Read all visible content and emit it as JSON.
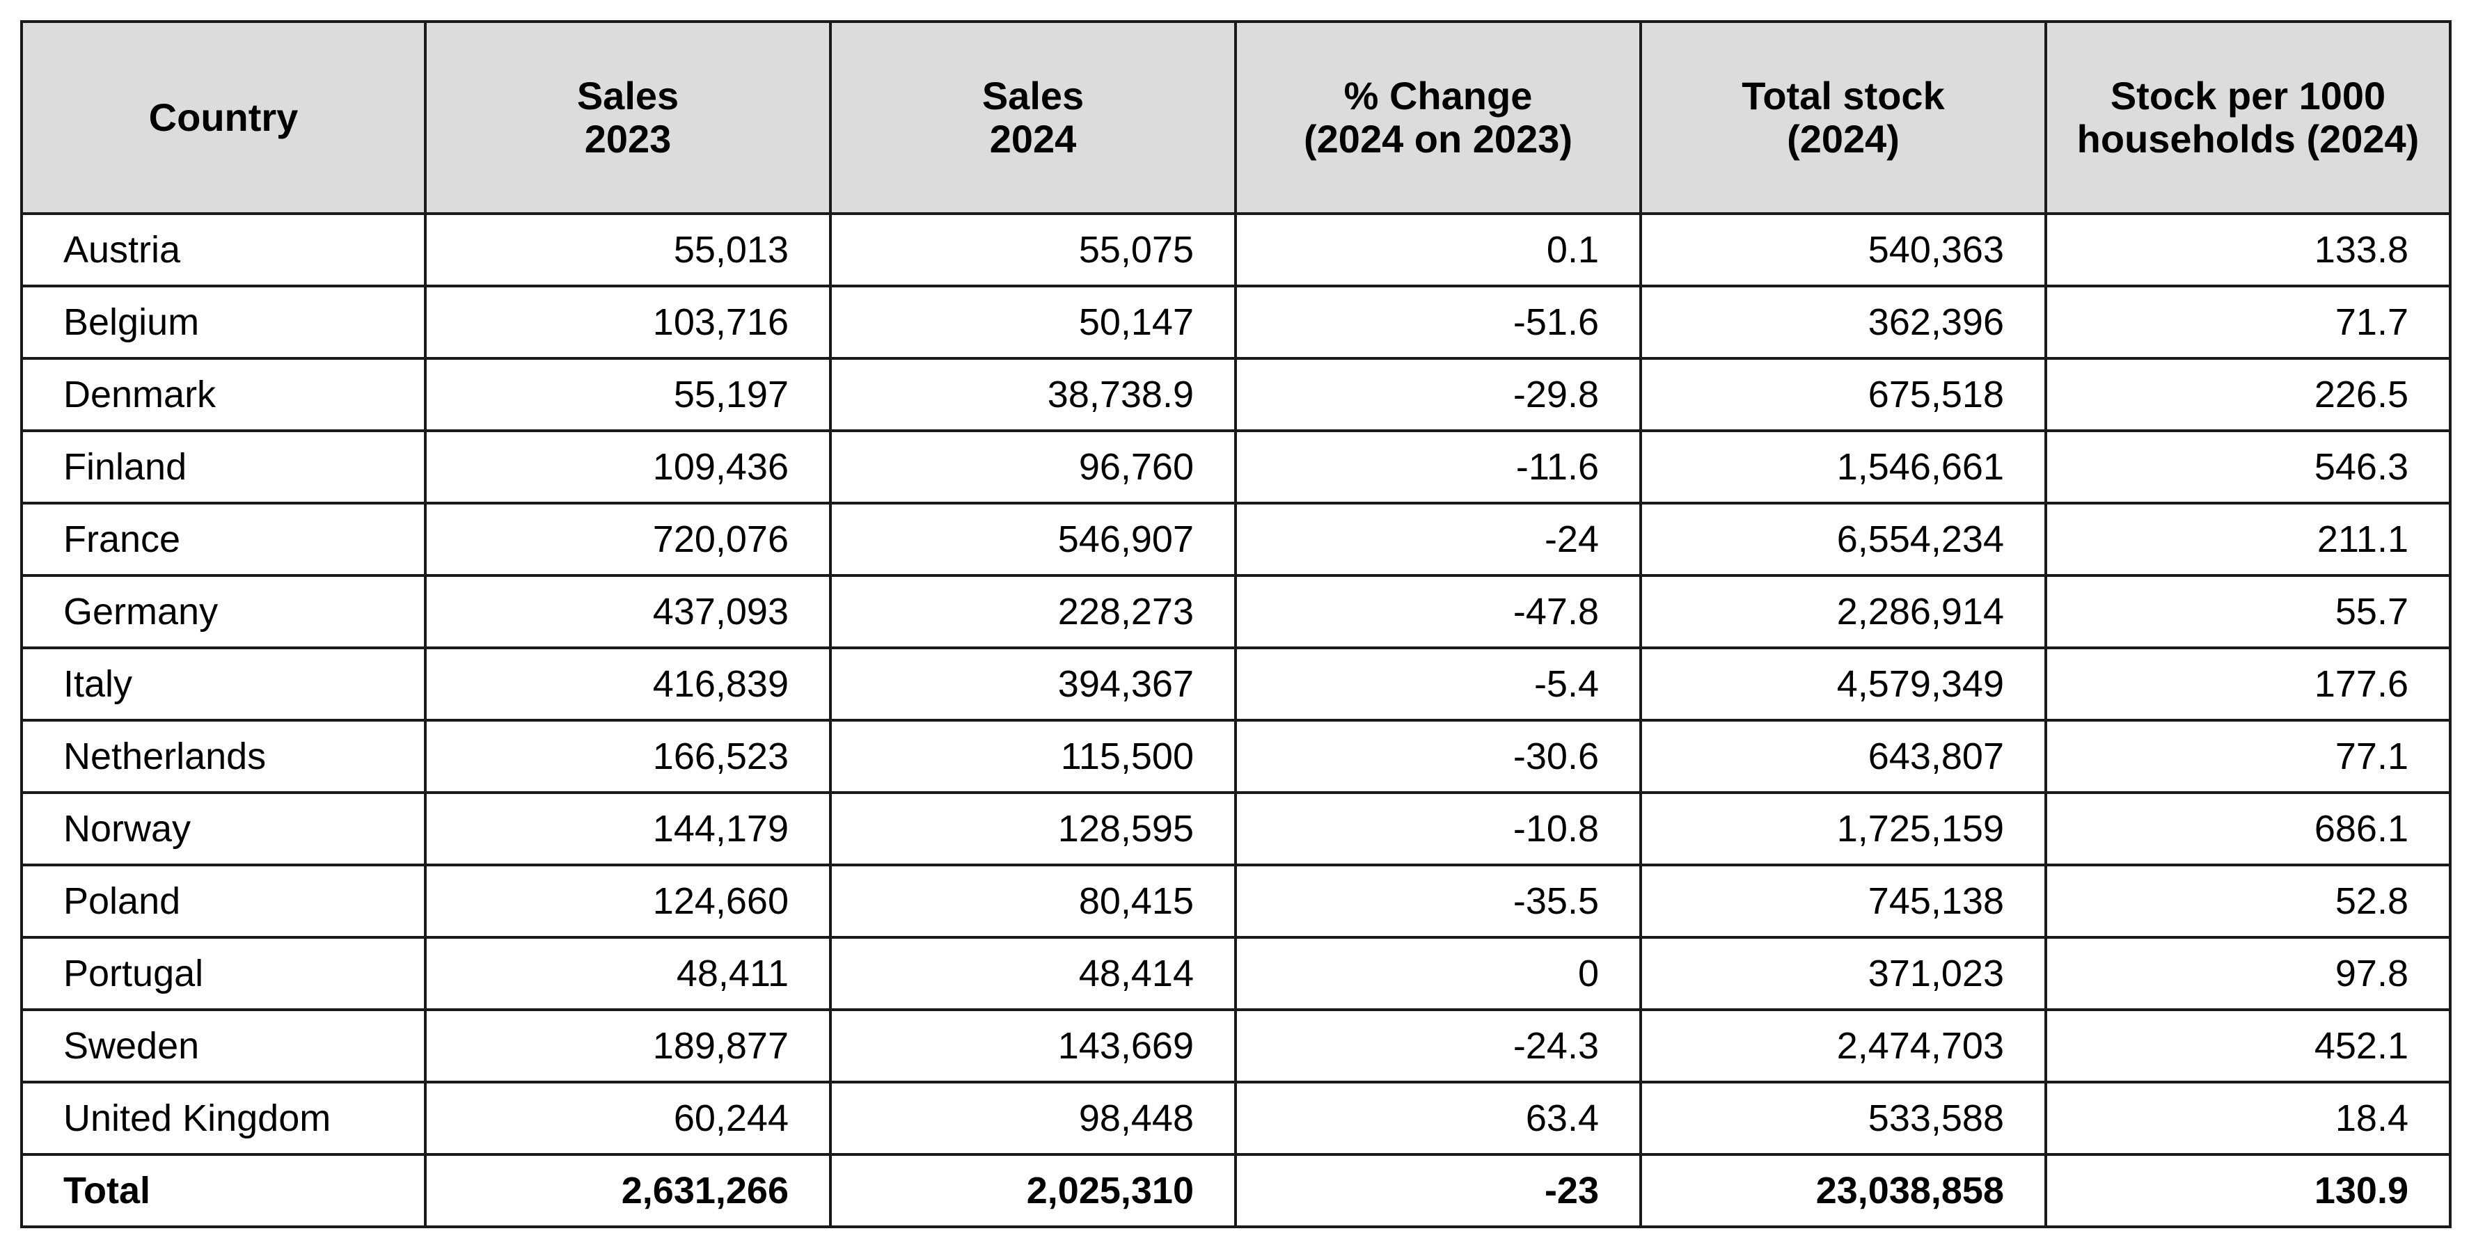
{
  "table": {
    "headers": [
      "Country",
      "Sales\n2023",
      "Sales\n2024",
      "% Change\n(2024 on 2023)",
      "Total stock\n(2024)",
      "Stock per 1000\nhouseholds (2024)"
    ],
    "rows": [
      [
        "Austria",
        "55,013",
        "55,075",
        "0.1",
        "540,363",
        "133.8"
      ],
      [
        "Belgium",
        "103,716",
        "50,147",
        "-51.6",
        "362,396",
        "71.7"
      ],
      [
        "Denmark",
        "55,197",
        "38,738.9",
        "-29.8",
        "675,518",
        "226.5"
      ],
      [
        "Finland",
        "109,436",
        "96,760",
        "-11.6",
        "1,546,661",
        "546.3"
      ],
      [
        "France",
        "720,076",
        "546,907",
        "-24",
        "6,554,234",
        "211.1"
      ],
      [
        "Germany",
        "437,093",
        "228,273",
        "-47.8",
        "2,286,914",
        "55.7"
      ],
      [
        "Italy",
        "416,839",
        "394,367",
        "-5.4",
        "4,579,349",
        "177.6"
      ],
      [
        "Netherlands",
        "166,523",
        "115,500",
        "-30.6",
        "643,807",
        "77.1"
      ],
      [
        "Norway",
        "144,179",
        "128,595",
        "-10.8",
        "1,725,159",
        "686.1"
      ],
      [
        "Poland",
        "124,660",
        "80,415",
        "-35.5",
        "745,138",
        "52.8"
      ],
      [
        "Portugal",
        "48,411",
        "48,414",
        "0",
        "371,023",
        "97.8"
      ],
      [
        "Sweden",
        "189,877",
        "143,669",
        "-24.3",
        "2,474,703",
        "452.1"
      ],
      [
        "United Kingdom",
        "60,244",
        "98,448",
        "63.4",
        "533,588",
        "18.4"
      ]
    ],
    "total": [
      "Total",
      "2,631,266",
      "2,025,310",
      "-23",
      "23,038,858",
      "130.9"
    ]
  },
  "colors": {
    "header_background": "#dcdcdc",
    "border": "#1a1a1a",
    "text": "#000000"
  }
}
